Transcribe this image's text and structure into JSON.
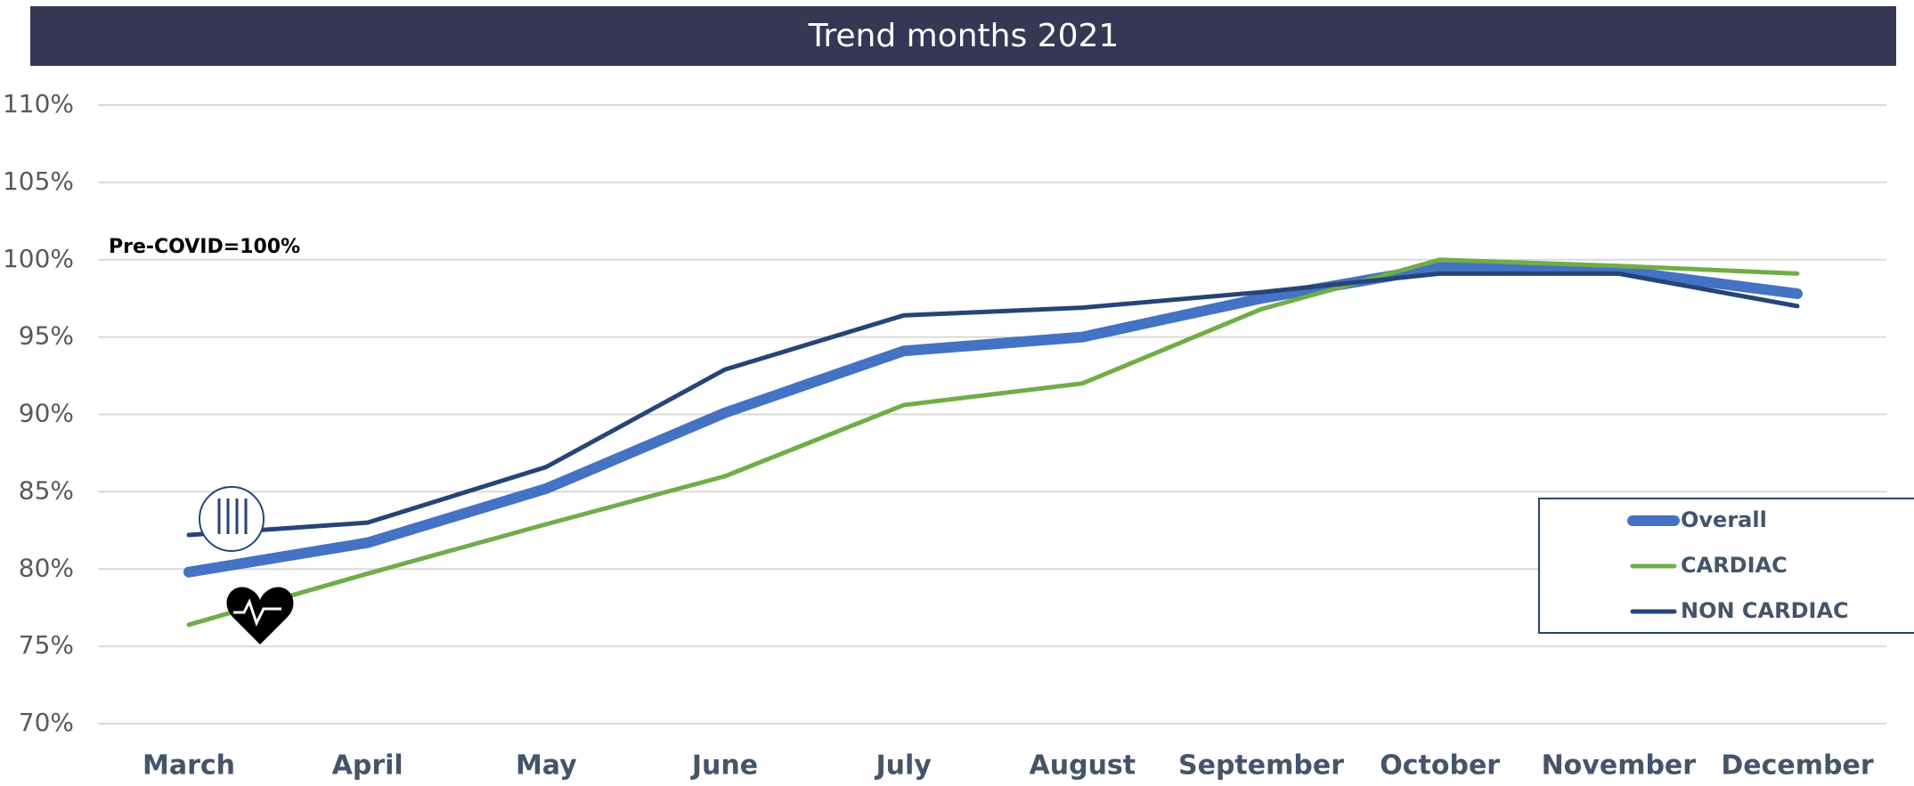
{
  "chart_data": {
    "type": "line",
    "title": "Trend months 2021",
    "annotation": "Pre-COVID=100%",
    "categories": [
      "March",
      "April",
      "May",
      "June",
      "July",
      "August",
      "September",
      "October",
      "November",
      "December"
    ],
    "series": [
      {
        "name": "Overall",
        "color": "#4472c4",
        "values": [
          79.8,
          81.7,
          85.2,
          90.1,
          94.1,
          95.0,
          97.5,
          99.5,
          99.3,
          97.8
        ]
      },
      {
        "name": "CARDIAC",
        "color": "#70ad47",
        "values": [
          76.4,
          79.7,
          82.9,
          86.0,
          90.6,
          92.0,
          96.8,
          100.0,
          99.6,
          99.1
        ]
      },
      {
        "name": "NON CARDIAC",
        "color": "#264478",
        "values": [
          82.2,
          83.0,
          86.6,
          92.9,
          96.4,
          96.9,
          97.9,
          99.1,
          99.1,
          97.0
        ]
      }
    ],
    "ylim": [
      70,
      110
    ],
    "yticks": [
      {
        "value": 70,
        "label": "70%"
      },
      {
        "value": 75,
        "label": "75%"
      },
      {
        "value": 80,
        "label": "80%"
      },
      {
        "value": 85,
        "label": "85%"
      },
      {
        "value": 90,
        "label": "90%"
      },
      {
        "value": 95,
        "label": "95%"
      },
      {
        "value": 100,
        "label": "100%"
      },
      {
        "value": 105,
        "label": "105%"
      },
      {
        "value": 110,
        "label": "110%"
      }
    ],
    "grid": true,
    "legend": "right"
  }
}
